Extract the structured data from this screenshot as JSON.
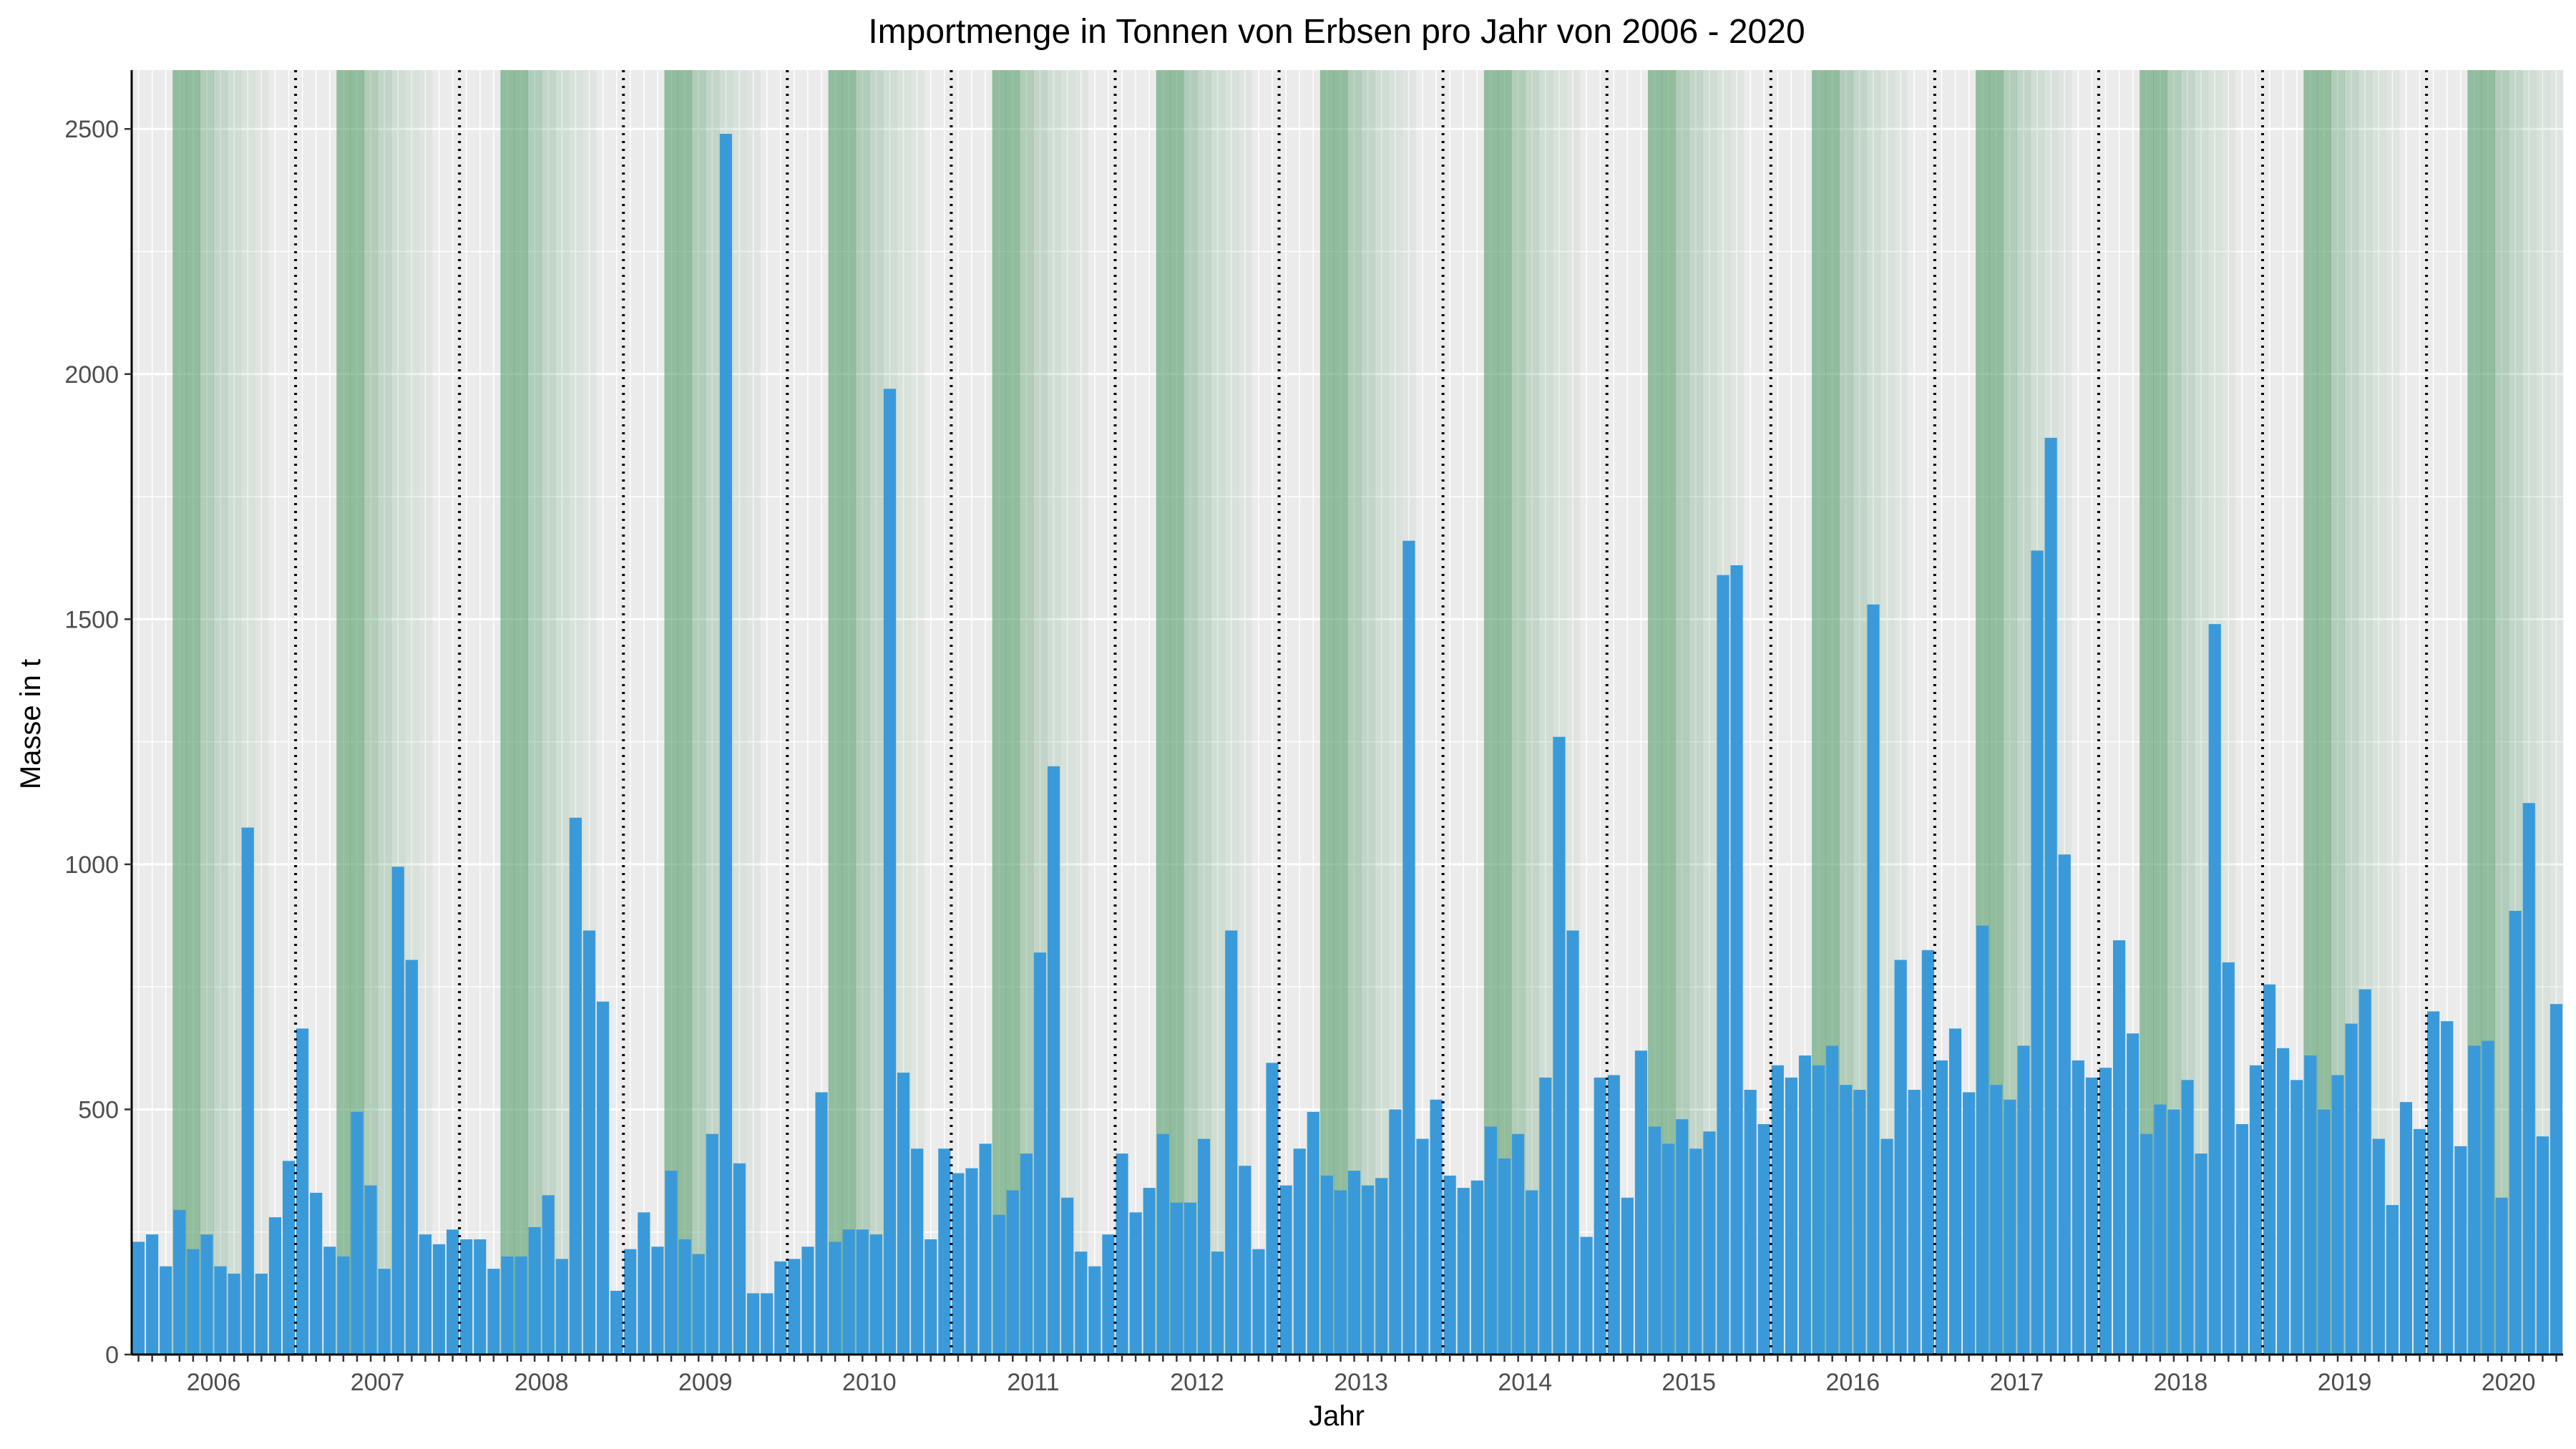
{
  "chart_data": {
    "type": "bar",
    "title": "Importmenge in Tonnen von Erbsen pro Jahr von 2006 - 2020",
    "xlabel": "Jahr",
    "ylabel": "Masse in t",
    "ylim": [
      0,
      2620
    ],
    "yticks": [
      0,
      500,
      1000,
      1500,
      2000,
      2500
    ],
    "years": [
      "2006",
      "2007",
      "2008",
      "2009",
      "2010",
      "2011",
      "2012",
      "2013",
      "2014",
      "2015",
      "2016",
      "2017",
      "2018",
      "2019",
      "2020"
    ],
    "interval": "monthly",
    "grid": true,
    "colors": {
      "bar": "#3a9ad9",
      "season": "#5a9f6e",
      "panel": "#ebebeb",
      "grid": "#ffffff"
    },
    "values": [
      230,
      245,
      180,
      295,
      215,
      245,
      180,
      165,
      1075,
      165,
      280,
      395,
      665,
      330,
      220,
      200,
      495,
      345,
      175,
      995,
      805,
      245,
      225,
      255,
      235,
      235,
      175,
      200,
      200,
      260,
      325,
      195,
      1095,
      865,
      720,
      130,
      215,
      290,
      220,
      375,
      235,
      205,
      450,
      2490,
      390,
      125,
      125,
      190,
      195,
      220,
      535,
      230,
      255,
      255,
      245,
      1970,
      575,
      420,
      235,
      420,
      370,
      380,
      430,
      285,
      335,
      410,
      820,
      1200,
      320,
      210,
      180,
      245,
      410,
      290,
      340,
      450,
      310,
      310,
      440,
      210,
      865,
      385,
      215,
      595,
      345,
      420,
      495,
      365,
      335,
      375,
      345,
      360,
      500,
      1660,
      440,
      520,
      365,
      340,
      355,
      465,
      400,
      450,
      335,
      565,
      1260,
      865,
      240,
      565,
      570,
      320,
      620,
      465,
      430,
      480,
      420,
      455,
      1590,
      1610,
      540,
      470,
      590,
      565,
      610,
      590,
      630,
      550,
      540,
      1530,
      440,
      805,
      540,
      825,
      600,
      665,
      535,
      875,
      550,
      520,
      630,
      1640,
      1870,
      1020,
      600,
      565,
      585,
      845,
      655,
      450,
      510,
      500,
      560,
      410,
      1490,
      800,
      470,
      590,
      755,
      625,
      560,
      610,
      500,
      570,
      675,
      745,
      440,
      305,
      515,
      460,
      700,
      680,
      425,
      630,
      640,
      320,
      905,
      1125,
      445,
      715
    ]
  }
}
